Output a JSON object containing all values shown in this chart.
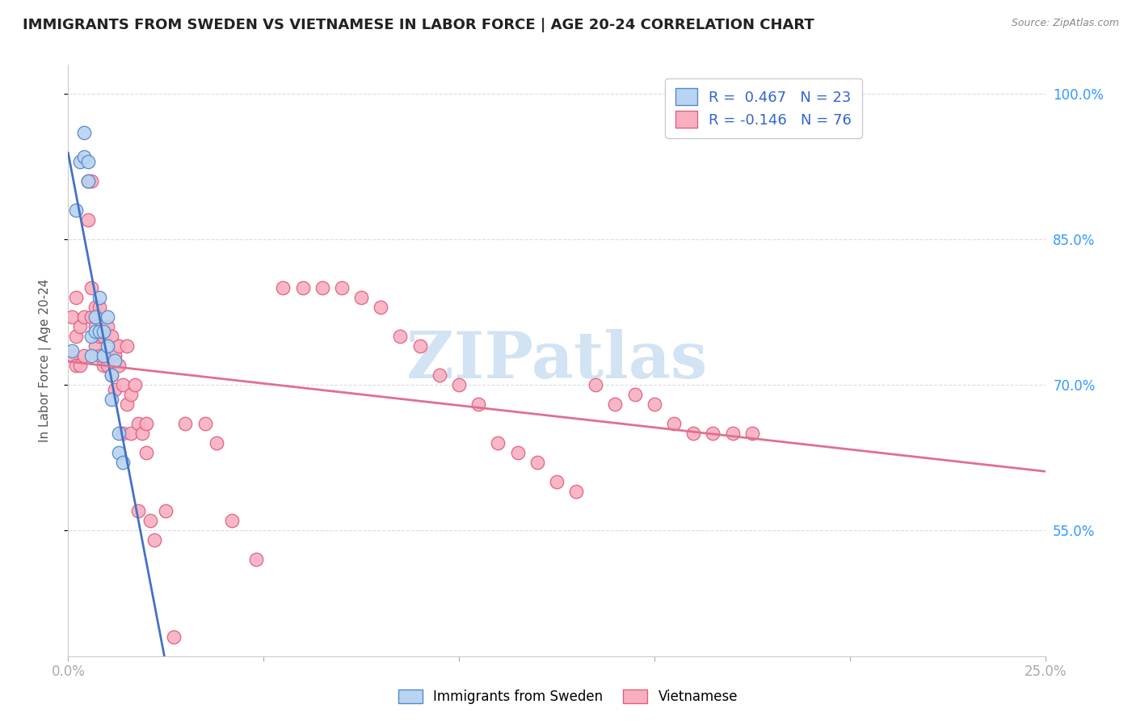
{
  "title": "IMMIGRANTS FROM SWEDEN VS VIETNAMESE IN LABOR FORCE | AGE 20-24 CORRELATION CHART",
  "source": "Source: ZipAtlas.com",
  "ylabel": "In Labor Force | Age 20-24",
  "xlim": [
    0.0,
    0.25
  ],
  "ylim": [
    0.42,
    1.03
  ],
  "ytick_positions": [
    0.55,
    0.7,
    0.85,
    1.0
  ],
  "ytick_labels": [
    "55.0%",
    "70.0%",
    "85.0%",
    "100.0%"
  ],
  "xtick_positions": [
    0.0,
    0.05,
    0.1,
    0.15,
    0.2,
    0.25
  ],
  "xtick_labels": [
    "0.0%",
    "",
    "",
    "",
    "",
    "25.0%"
  ],
  "sweden_R": 0.467,
  "sweden_N": 23,
  "viet_R": -0.146,
  "viet_N": 76,
  "sweden_color": "#b8d4f0",
  "viet_color": "#f8b0c0",
  "sweden_edge_color": "#5588cc",
  "viet_edge_color": "#e06080",
  "sweden_line_color": "#4472c4",
  "viet_line_color": "#e07090",
  "sweden_x": [
    0.001,
    0.002,
    0.003,
    0.004,
    0.004,
    0.005,
    0.005,
    0.006,
    0.006,
    0.007,
    0.007,
    0.008,
    0.008,
    0.009,
    0.009,
    0.01,
    0.01,
    0.011,
    0.011,
    0.012,
    0.013,
    0.013,
    0.014
  ],
  "sweden_y": [
    0.735,
    0.88,
    0.93,
    0.96,
    0.935,
    0.93,
    0.91,
    0.75,
    0.73,
    0.77,
    0.755,
    0.79,
    0.755,
    0.755,
    0.73,
    0.77,
    0.74,
    0.71,
    0.685,
    0.725,
    0.65,
    0.63,
    0.62
  ],
  "viet_x": [
    0.001,
    0.001,
    0.002,
    0.002,
    0.002,
    0.003,
    0.003,
    0.004,
    0.004,
    0.005,
    0.005,
    0.006,
    0.006,
    0.006,
    0.007,
    0.007,
    0.007,
    0.008,
    0.008,
    0.008,
    0.009,
    0.009,
    0.01,
    0.01,
    0.011,
    0.011,
    0.012,
    0.012,
    0.013,
    0.013,
    0.014,
    0.014,
    0.015,
    0.015,
    0.016,
    0.016,
    0.017,
    0.018,
    0.018,
    0.019,
    0.02,
    0.02,
    0.021,
    0.022,
    0.025,
    0.027,
    0.03,
    0.035,
    0.038,
    0.042,
    0.048,
    0.055,
    0.06,
    0.065,
    0.07,
    0.075,
    0.08,
    0.085,
    0.09,
    0.095,
    0.1,
    0.105,
    0.11,
    0.115,
    0.12,
    0.125,
    0.13,
    0.135,
    0.14,
    0.145,
    0.15,
    0.155,
    0.16,
    0.165,
    0.17,
    0.175
  ],
  "viet_y": [
    0.77,
    0.73,
    0.79,
    0.75,
    0.72,
    0.76,
    0.72,
    0.77,
    0.73,
    0.91,
    0.87,
    0.8,
    0.77,
    0.91,
    0.78,
    0.76,
    0.74,
    0.78,
    0.75,
    0.73,
    0.75,
    0.72,
    0.76,
    0.72,
    0.75,
    0.71,
    0.73,
    0.695,
    0.74,
    0.72,
    0.7,
    0.65,
    0.68,
    0.74,
    0.69,
    0.65,
    0.7,
    0.66,
    0.57,
    0.65,
    0.66,
    0.63,
    0.56,
    0.54,
    0.57,
    0.44,
    0.66,
    0.66,
    0.64,
    0.56,
    0.52,
    0.8,
    0.8,
    0.8,
    0.8,
    0.79,
    0.78,
    0.75,
    0.74,
    0.71,
    0.7,
    0.68,
    0.64,
    0.63,
    0.62,
    0.6,
    0.59,
    0.7,
    0.68,
    0.69,
    0.68,
    0.66,
    0.65,
    0.65,
    0.65,
    0.65
  ],
  "watermark_text": "ZIPatlas",
  "watermark_color": "#c0d8ee",
  "background_color": "#ffffff",
  "grid_color": "#dddddd",
  "legend_text_color": "#3366cc",
  "title_fontsize": 13,
  "axis_label_fontsize": 11,
  "tick_fontsize": 12
}
